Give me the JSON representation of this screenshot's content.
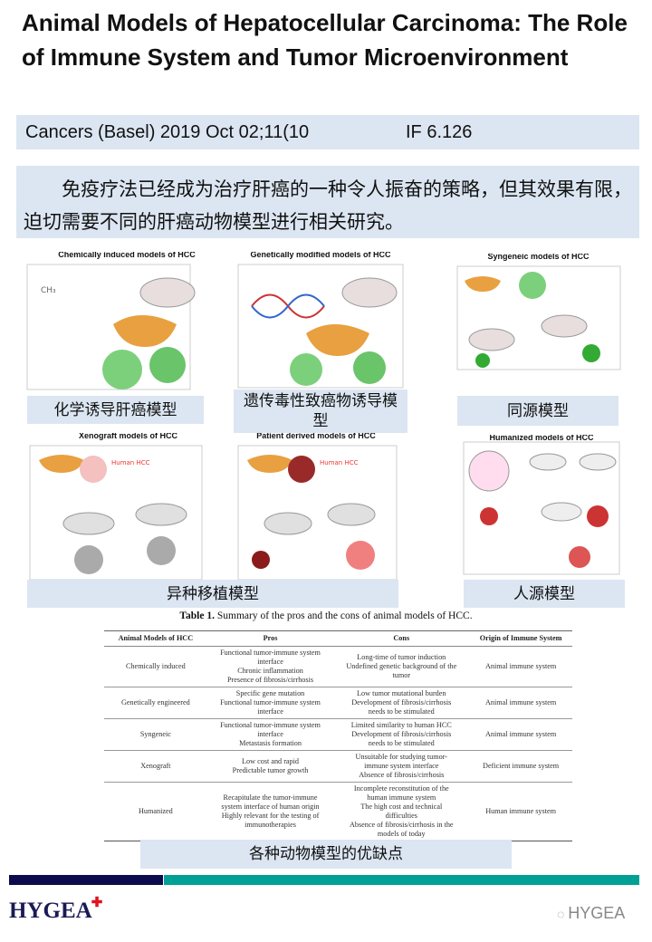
{
  "title": "Animal Models of Hepatocellular Carcinoma: The Role of Immune System and Tumor Microenvironment",
  "journal": {
    "citation": "Cancers (Basel) 2019 Oct 02;11(10",
    "impact_factor": "IF 6.126"
  },
  "summary": "免疫疗法已经成为治疗肝癌的一种令人振奋的策略，但其效果有限，迫切需要不同的肝癌动物模型进行相关研究。",
  "figures": [
    {
      "title": "Chemically induced models of HCC",
      "label": "化学诱导肝癌模型"
    },
    {
      "title": "Genetically modified models of HCC",
      "label": "遗传毒性致癌物诱导模型"
    },
    {
      "title": "Syngeneic models of HCC",
      "label": "同源模型"
    },
    {
      "title": "Xenograft models of HCC",
      "label": "异种移植模型"
    },
    {
      "title": "Patient derived models of HCC",
      "label": ""
    },
    {
      "title": "Humanized models of HCC",
      "label": "人源模型"
    }
  ],
  "table": {
    "caption_bold": "Table 1.",
    "caption": " Summary of the pros and the cons of animal models of HCC.",
    "headers": [
      "Animal Models of HCC",
      "Pros",
      "Cons",
      "Origin of Immune System"
    ],
    "rows": [
      [
        "Chemically induced",
        "Functional tumor-immune system interface\nChronic inflammation\nPresence of fibrosis/cirrhosis",
        "Long-time of tumor induction\nUndefined genetic background of the tumor",
        "Animal immune system"
      ],
      [
        "Genetically engineered",
        "Specific gene mutation\nFunctional tumor-immune system interface",
        "Low tumor mutational burden\nDevelopment of fibrosis/cirrhosis needs to be stimulated",
        "Animal immune system"
      ],
      [
        "Syngeneic",
        "Functional tumor-immune system interface\nMetastasis formation",
        "Limited similarity to human HCC\nDevelopment of fibrosis/cirrhosis needs to be stimulated",
        "Animal immune system"
      ],
      [
        "Xenograft",
        "Low cost and rapid\nPredictable tumor growth",
        "Unsuitable for studying tumor-immune system interface\nAbsence of fibrosis/cirrhosis",
        "Deficient immune system"
      ],
      [
        "Humanized",
        "Recapitulate the tumor-immune system interface of human origin\nHighly relevant for the testing of immunotherapies",
        "Incomplete reconstitution of the human immune system\nThe high cost and technical difficulties\nAbsence of fibrosis/cirrhosis in the models of today",
        "Human immune system"
      ]
    ]
  },
  "bottom_label": "各种动物模型的优缺点",
  "footer": {
    "logo": "HYGEA",
    "watermark": "HYGEA",
    "colors": {
      "navy": "#0b0b4d",
      "teal": "#00a096",
      "band": "#dce6f2"
    }
  }
}
